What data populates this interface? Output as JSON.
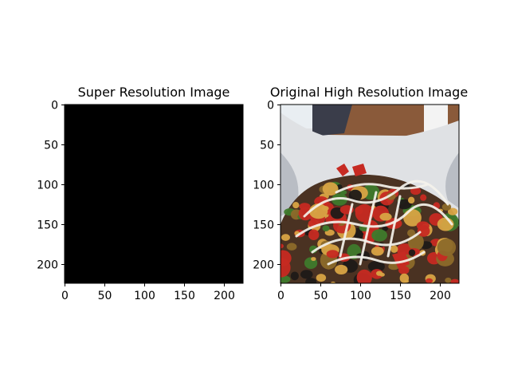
{
  "chart_data": [
    {
      "type": "image",
      "title": "Super Resolution Image",
      "xlim": [
        -0.5,
        223.5
      ],
      "ylim": [
        223.5,
        -0.5
      ],
      "xticks": [
        0,
        50,
        100,
        150,
        200
      ],
      "yticks": [
        0,
        50,
        100,
        150,
        200
      ],
      "content": "solid-black",
      "fill_color": "#000000"
    },
    {
      "type": "image",
      "title": "Original High Resolution Image",
      "xlim": [
        -0.5,
        223.5
      ],
      "ylim": [
        223.5,
        -0.5
      ],
      "xticks": [
        0,
        50,
        100,
        150,
        200
      ],
      "yticks": [
        0,
        50,
        100,
        150,
        200
      ],
      "content": "food-photo",
      "palette": {
        "paper": "#dfe1e4",
        "paper_shadow": "#b9bdc4",
        "table": "#8a5a3a",
        "sky": "#e9eef2",
        "food_base": "#4a3222",
        "pepper_red": "#c62a22",
        "potato": "#d8a445",
        "herb_green": "#3e7a2c",
        "sauce": "#f4f2ec",
        "dark": "#1e1a18"
      }
    }
  ]
}
